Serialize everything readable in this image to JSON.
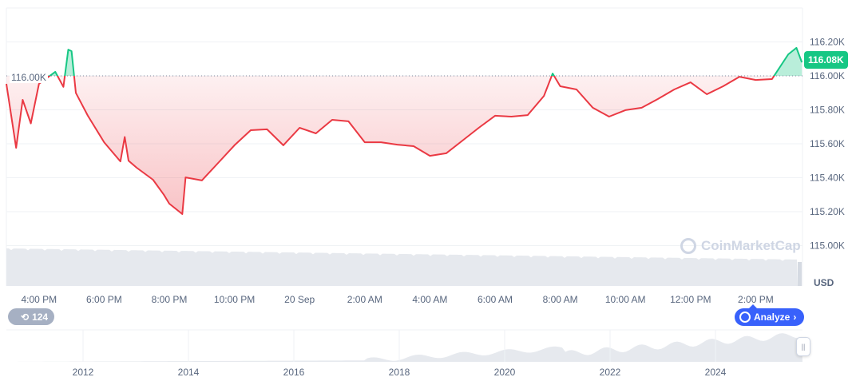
{
  "chart_data": {
    "type": "line",
    "title": "",
    "xlabel": "",
    "ylabel": "",
    "currency_label": "USD",
    "ylim": [
      114900,
      116300
    ],
    "y_ticks": [
      {
        "value": 115000,
        "label": "115.00K"
      },
      {
        "value": 115200,
        "label": "115.20K"
      },
      {
        "value": 115400,
        "label": "115.40K"
      },
      {
        "value": 115600,
        "label": "115.60K"
      },
      {
        "value": 115800,
        "label": "115.80K"
      },
      {
        "value": 116000,
        "label": "116.00K"
      },
      {
        "value": 116200,
        "label": "116.20K"
      }
    ],
    "x_ticks": [
      {
        "time": "19 Sep 16:00",
        "label": "4:00 PM"
      },
      {
        "time": "19 Sep 18:00",
        "label": "6:00 PM"
      },
      {
        "time": "19 Sep 20:00",
        "label": "8:00 PM"
      },
      {
        "time": "19 Sep 22:00",
        "label": "10:00 PM"
      },
      {
        "time": "20 Sep 00:00",
        "label": "20 Sep"
      },
      {
        "time": "20 Sep 02:00",
        "label": "2:00 AM"
      },
      {
        "time": "20 Sep 04:00",
        "label": "4:00 AM"
      },
      {
        "time": "20 Sep 06:00",
        "label": "6:00 AM"
      },
      {
        "time": "20 Sep 08:00",
        "label": "8:00 AM"
      },
      {
        "time": "20 Sep 10:00",
        "label": "10:00 AM"
      },
      {
        "time": "20 Sep 12:00",
        "label": "12:00 PM"
      },
      {
        "time": "20 Sep 14:00",
        "label": "2:00 PM"
      }
    ],
    "baseline": {
      "value": 116000,
      "label": "116.00K"
    },
    "current_price": {
      "value": 116080,
      "label": "116.08K"
    },
    "colors": {
      "up": "#16c784",
      "down": "#ea3943",
      "grid": "#eff2f5",
      "volume": "#e6e9ee"
    },
    "grid": true,
    "series": [
      {
        "points": [
          [
            "19 Sep 15:00",
            115953
          ],
          [
            "19 Sep 15:18",
            115576
          ],
          [
            "19 Sep 15:30",
            115859
          ],
          [
            "19 Sep 15:45",
            115720
          ],
          [
            "19 Sep 16:00",
            115953
          ],
          [
            "19 Sep 16:30",
            116024
          ],
          [
            "19 Sep 16:45",
            115935
          ],
          [
            "19 Sep 16:54",
            116155
          ],
          [
            "19 Sep 17:00",
            116146
          ],
          [
            "19 Sep 17:08",
            115900
          ],
          [
            "19 Sep 17:30",
            115765
          ],
          [
            "19 Sep 18:00",
            115609
          ],
          [
            "19 Sep 18:30",
            115496
          ],
          [
            "19 Sep 18:38",
            115640
          ],
          [
            "19 Sep 18:45",
            115500
          ],
          [
            "19 Sep 19:00",
            115459
          ],
          [
            "19 Sep 19:30",
            115388
          ],
          [
            "19 Sep 19:50",
            115300
          ],
          [
            "19 Sep 20:00",
            115247
          ],
          [
            "19 Sep 20:24",
            115186
          ],
          [
            "19 Sep 20:30",
            115402
          ],
          [
            "19 Sep 21:00",
            115384
          ],
          [
            "19 Sep 21:30",
            115487
          ],
          [
            "19 Sep 22:00",
            115591
          ],
          [
            "19 Sep 22:30",
            115680
          ],
          [
            "19 Sep 23:00",
            115685
          ],
          [
            "19 Sep 23:30",
            115591
          ],
          [
            "20 Sep 00:00",
            115694
          ],
          [
            "20 Sep 00:30",
            115661
          ],
          [
            "20 Sep 01:00",
            115741
          ],
          [
            "20 Sep 01:30",
            115732
          ],
          [
            "20 Sep 02:00",
            115609
          ],
          [
            "20 Sep 02:30",
            115609
          ],
          [
            "20 Sep 03:00",
            115595
          ],
          [
            "20 Sep 03:30",
            115586
          ],
          [
            "20 Sep 04:00",
            115529
          ],
          [
            "20 Sep 04:30",
            115544
          ],
          [
            "20 Sep 05:00",
            115619
          ],
          [
            "20 Sep 05:30",
            115694
          ],
          [
            "20 Sep 06:00",
            115765
          ],
          [
            "20 Sep 06:30",
            115760
          ],
          [
            "20 Sep 07:00",
            115769
          ],
          [
            "20 Sep 07:30",
            115882
          ],
          [
            "20 Sep 07:46",
            116014
          ],
          [
            "20 Sep 08:00",
            115939
          ],
          [
            "20 Sep 08:30",
            115920
          ],
          [
            "20 Sep 09:00",
            115812
          ],
          [
            "20 Sep 09:30",
            115760
          ],
          [
            "20 Sep 10:00",
            115798
          ],
          [
            "20 Sep 10:30",
            115812
          ],
          [
            "20 Sep 11:00",
            115864
          ],
          [
            "20 Sep 11:30",
            115920
          ],
          [
            "20 Sep 12:00",
            115962
          ],
          [
            "20 Sep 12:30",
            115892
          ],
          [
            "20 Sep 13:00",
            115939
          ],
          [
            "20 Sep 13:30",
            115995
          ],
          [
            "20 Sep 14:00",
            115976
          ],
          [
            "20 Sep 14:30",
            115981
          ],
          [
            "20 Sep 15:00",
            116127
          ],
          [
            "20 Sep 15:15",
            116165
          ],
          [
            "20 Sep 15:25",
            116080
          ]
        ]
      }
    ]
  },
  "navigator": {
    "year_labels": [
      "2012",
      "2014",
      "2016",
      "2018",
      "2020",
      "2022",
      "2024"
    ]
  },
  "watermark": "CoinMarketCap",
  "history_badge": {
    "icon": "history-icon",
    "count": "124"
  },
  "analyze_button": {
    "label": "Analyze",
    "icon": "cmc-ai-icon"
  }
}
